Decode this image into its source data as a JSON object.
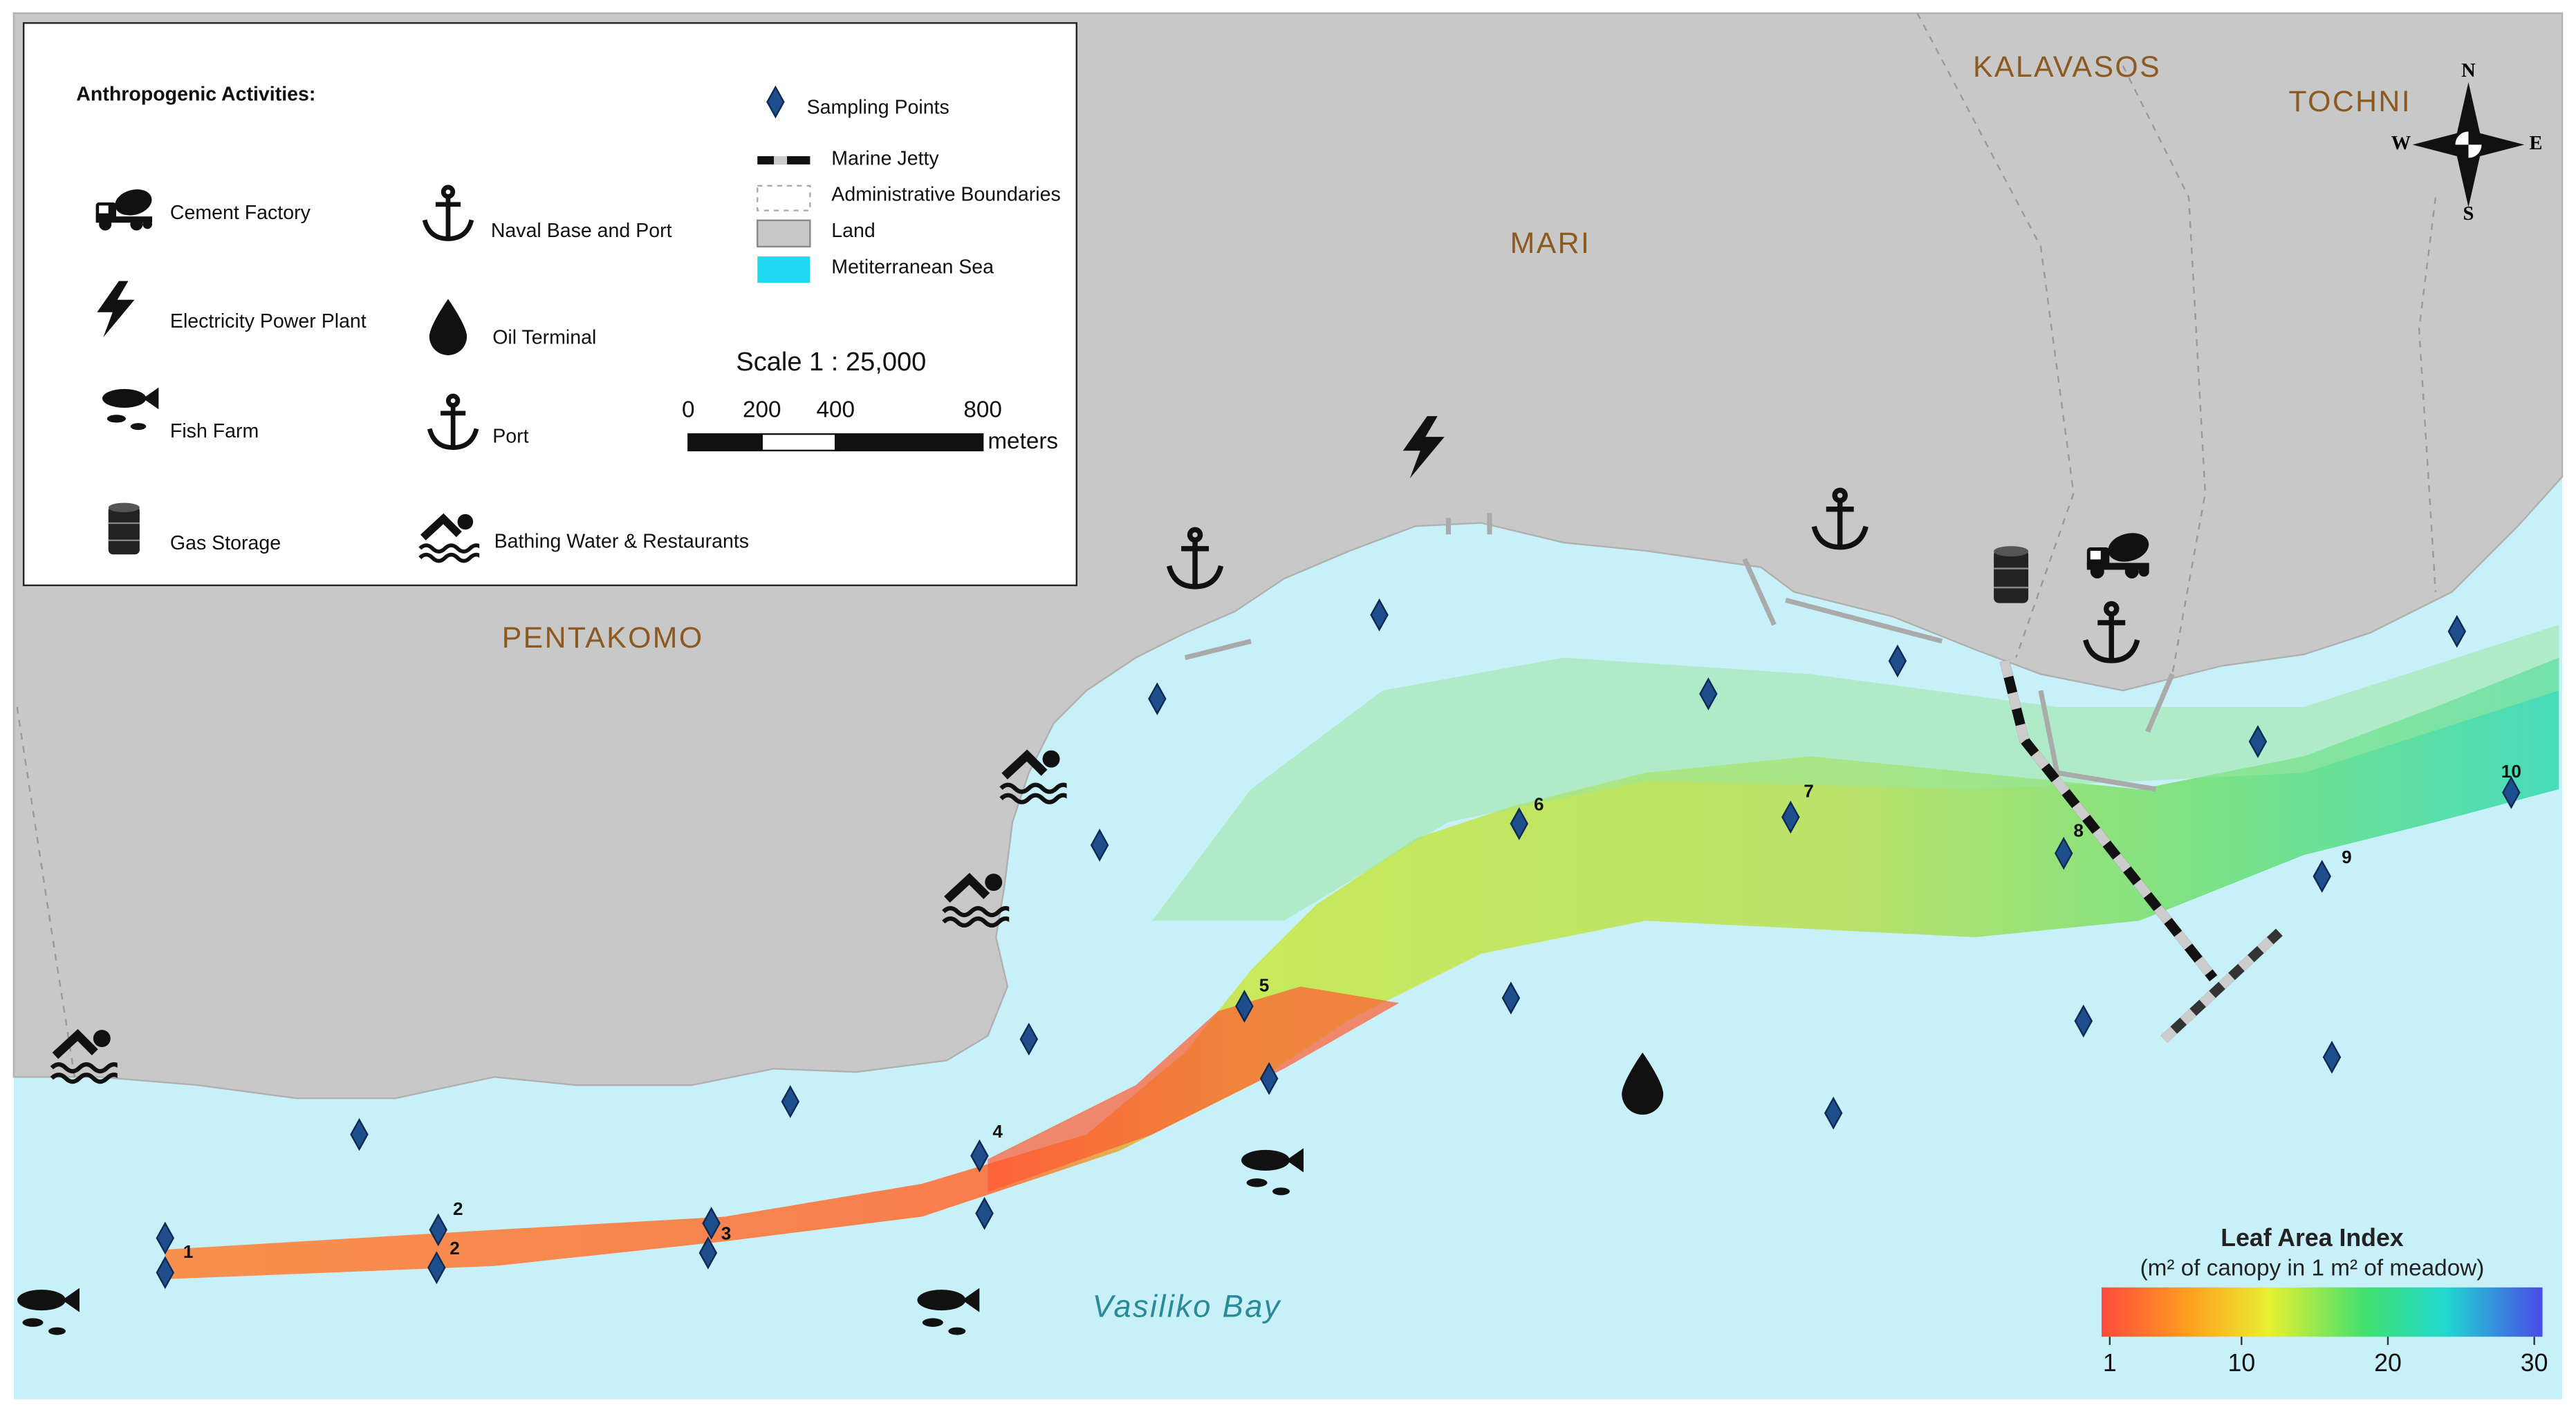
{
  "legend": {
    "title": "Anthropogenic Activities:",
    "activities": [
      "Cement Factory",
      "Electricity Power Plant",
      "Fish Farm",
      "Gas Storage",
      "Naval Base and Port",
      "Oil Terminal",
      "Port",
      "Bathing Water & Restaurants"
    ],
    "map_keys": [
      "Sampling Points",
      "Marine Jetty",
      "Administrative Boundaries",
      "Land",
      "Metiterranean Sea"
    ],
    "scale": {
      "title": "Scale  1 : 25,000",
      "ticks": [
        0,
        200,
        400,
        800
      ],
      "unit": "meters"
    }
  },
  "places": [
    "KALAVASOS",
    "TOCHNI",
    "MARI",
    "PENTAKOMO",
    "Vasiliko Bay"
  ],
  "compass": [
    "N",
    "E",
    "S",
    "W"
  ],
  "sampling_labels": [
    "1",
    "2",
    "2",
    "3",
    "4",
    "5",
    "6",
    "7",
    "8",
    "9",
    "10"
  ],
  "colorbar": {
    "title": "Leaf Area Index",
    "subtitle": "(m² of canopy in 1 m² of meadow)",
    "ticks": [
      1,
      10,
      20,
      30
    ]
  }
}
